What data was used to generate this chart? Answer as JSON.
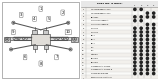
{
  "bg_color": "#ffffff",
  "left_bg": "#ffffff",
  "right_bg": "#ffffff",
  "border_color": "#444444",
  "lc": "#555555",
  "rows": [
    {
      "no": "1",
      "desc": "CROSSMEMBER COMP",
      "dots": [
        1,
        1,
        0,
        0
      ]
    },
    {
      "no": "2",
      "desc": "CROSSMEMBER COMP",
      "dots": [
        0,
        0,
        1,
        1
      ]
    },
    {
      "no": "3",
      "desc": "BRACKET",
      "dots": [
        1,
        1,
        1,
        1
      ]
    },
    {
      "no": "4",
      "desc": "CUSHION RUBBER A",
      "dots": [
        1,
        1,
        0,
        0
      ]
    },
    {
      "no": "5",
      "desc": "CUSHION RUBBER B",
      "dots": [
        0,
        0,
        1,
        1
      ]
    },
    {
      "no": "6",
      "desc": "STOPPER",
      "dots": [
        1,
        1,
        1,
        1
      ]
    },
    {
      "no": "7",
      "desc": "STOPPER",
      "dots": [
        1,
        1,
        1,
        1
      ]
    },
    {
      "no": "8",
      "desc": "BOLT",
      "dots": [
        1,
        1,
        1,
        1
      ]
    },
    {
      "no": "9",
      "desc": "BOLT",
      "dots": [
        1,
        1,
        1,
        1
      ]
    },
    {
      "no": "10",
      "desc": "BOLT",
      "dots": [
        1,
        1,
        1,
        1
      ]
    },
    {
      "no": "11",
      "desc": "NUT",
      "dots": [
        1,
        1,
        1,
        1
      ]
    },
    {
      "no": "12",
      "desc": "NUT",
      "dots": [
        1,
        1,
        1,
        1
      ]
    },
    {
      "no": "13",
      "desc": "WASHER",
      "dots": [
        1,
        1,
        1,
        1
      ]
    },
    {
      "no": "14",
      "desc": "BUSHING",
      "dots": [
        1,
        1,
        1,
        1
      ]
    },
    {
      "no": "15",
      "desc": "BUSHING",
      "dots": [
        1,
        1,
        1,
        1
      ]
    },
    {
      "no": "16",
      "desc": "DIFFERENTIAL MOUNT",
      "dots": [
        1,
        1,
        1,
        1
      ]
    },
    {
      "no": "17",
      "desc": "DIFFERENTIAL MOUNT B",
      "dots": [
        1,
        1,
        1,
        1
      ]
    },
    {
      "no": "18",
      "desc": "MOUNTING RUBBER",
      "dots": [
        1,
        1,
        1,
        1
      ]
    },
    {
      "no": "*",
      "desc": "REFER TO 41310AA021",
      "dots": [
        0,
        0,
        0,
        0
      ]
    }
  ],
  "col_headers": [
    "",
    "",
    "",
    ""
  ],
  "dot_color": "#222222",
  "text_color": "#111111",
  "table_line_color": "#888888",
  "header_text": "PART NO. & DESC.",
  "header_cols": [
    "1",
    "2",
    "3",
    "4"
  ]
}
